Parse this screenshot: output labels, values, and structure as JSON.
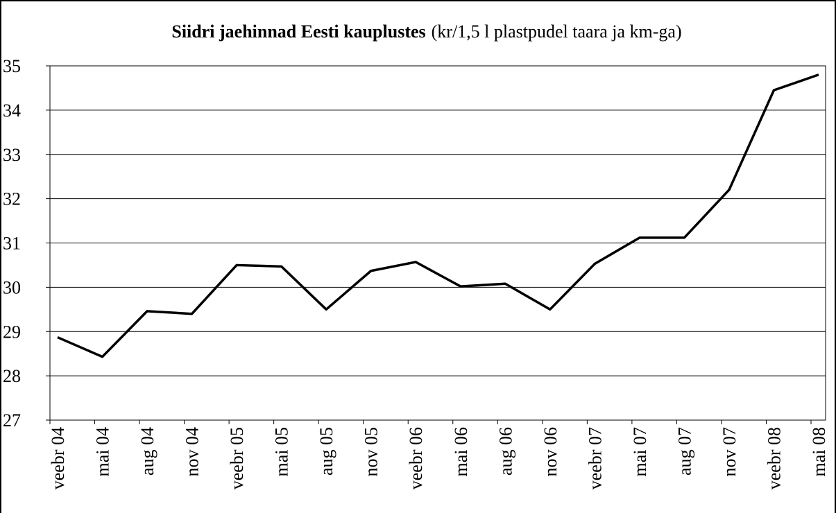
{
  "chart_data": {
    "type": "line",
    "title": "Siidri jaehinnad Eesti kauplustes",
    "subtitle": "(kr/1,5 l plastpudel taara ja km-ga)",
    "categories": [
      "veebr 04",
      "mai 04",
      "aug 04",
      "nov 04",
      "veebr 05",
      "mai 05",
      "aug 05",
      "nov 05",
      "veebr 06",
      "mai 06",
      "aug 06",
      "nov 06",
      "veebr 07",
      "mai 07",
      "aug 07",
      "nov 07",
      "veebr 08",
      "mai 08"
    ],
    "series": [
      {
        "color": "#000000",
        "values": [
          28.87,
          28.43,
          29.46,
          29.4,
          30.5,
          30.47,
          29.5,
          30.37,
          30.57,
          30.02,
          30.08,
          29.5,
          30.53,
          31.12,
          31.12,
          32.2,
          34.45,
          34.8
        ]
      }
    ],
    "ylim": [
      27,
      35
    ],
    "yticks": [
      27,
      28,
      29,
      30,
      31,
      32,
      33,
      34,
      35
    ],
    "grid": true
  }
}
